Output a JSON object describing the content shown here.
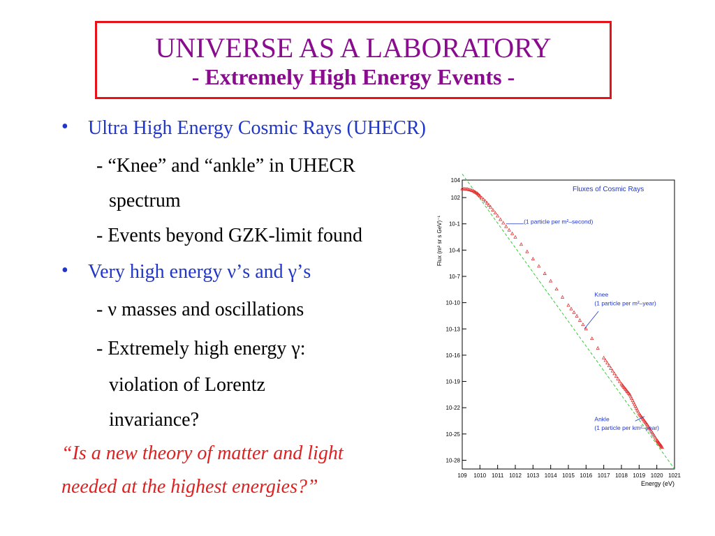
{
  "slide": {
    "title": "UNIVERSE AS A LABORATORY",
    "subtitle": "- Extremely High Energy Events -",
    "bullet1": "Ultra High Energy Cosmic Rays (UHECR)",
    "sub1a": "- “Knee” and “ankle” in UHECR",
    "sub1a_cont": "spectrum",
    "sub1b": "- Events beyond GZK-limit found",
    "bullet2": "Very high energy ν’s and γ’s",
    "sub2a": "- ν masses and oscillations",
    "sub2b": "- Extremely high energy γ:",
    "sub2b_cont1": "violation of Lorentz",
    "sub2b_cont2": "invariance?",
    "quote1": "“Is a new theory of matter and light",
    "quote2": "needed at the highest energies?”",
    "bullet_symbol": "•"
  },
  "chart_data": {
    "type": "scatter",
    "title": "Fluxes of Cosmic Rays",
    "xlabel": "Energy (eV)",
    "ylabel": "Flux (m² sr s GeV)⁻¹",
    "x_scale": "log",
    "y_scale": "log",
    "xlim": [
      1000000000.0,
      1e+21
    ],
    "ylim": [
      1e-29,
      10000.0
    ],
    "x_ticks": [
      "10^9",
      "10^10",
      "10^11",
      "10^12",
      "10^13",
      "10^14",
      "10^15",
      "10^16",
      "10^17",
      "10^18",
      "10^19",
      "10^20",
      "10^21"
    ],
    "y_ticks": [
      "10^4",
      "10^2",
      "10^-1",
      "10^-4",
      "10^-7",
      "10^-10",
      "10^-13",
      "10^-16",
      "10^-19",
      "10^-22",
      "10^-25",
      "10^-28"
    ],
    "annotations": [
      {
        "text": "(1 particle per m²–second)",
        "x": 100000000000.0,
        "y": 0.1
      },
      {
        "text": "Knee",
        "x": 4000000000000000.0,
        "y": 3e-10
      },
      {
        "text": "(1 particle per m²–year)",
        "x": 4000000000000000.0,
        "y": 3e-11
      },
      {
        "text": "Ankle",
        "x": 1e+19,
        "y": 3e-24
      },
      {
        "text": "(1 particle per km²–year)",
        "x": 1e+19,
        "y": 3e-25
      }
    ],
    "series": [
      {
        "marker": "triangle",
        "color": "#e02020",
        "x": [
          1000000000.0,
          2000000000.0,
          4000000000.0,
          7000000000.0,
          10000000000.0,
          20000000000.0,
          40000000000.0,
          100000000000.0,
          300000000000.0,
          1000000000000.0,
          10000000000000.0,
          100000000000000.0,
          1000000000000000.0,
          3000000000000000.0,
          1e+16,
          1e+17,
          1e+18,
          3e+18,
          1e+19,
          3e+19,
          1e+20,
          2e+20
        ],
        "y": [
          1000,
          900,
          600,
          300,
          150,
          40,
          8,
          0.8,
          0.05,
          0.003,
          1e-05,
          3e-08,
          5e-11,
          3e-12,
          1e-13,
          5e-17,
          5e-20,
          3e-21,
          2e-23,
          1e-24,
          2e-26,
          3e-27
        ]
      },
      {
        "name": "",
        "line_style": "dashed",
        "color": "#33cc33",
        "x": [
          1000000000.0,
          1e+21
        ],
        "y": [
          50000.0,
          1e-29
        ]
      }
    ],
    "grid": false
  }
}
